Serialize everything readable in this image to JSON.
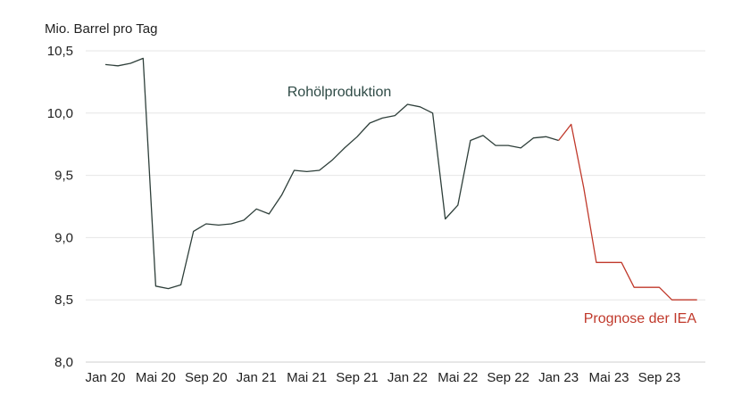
{
  "chart_data": {
    "type": "line",
    "ylabel": "Mio. Barrel pro Tag",
    "ylim": [
      8.0,
      10.5
    ],
    "yticks": [
      "8,0",
      "8,5",
      "9,0",
      "9,5",
      "10,0",
      "10,5"
    ],
    "ytick_values": [
      8.0,
      8.5,
      9.0,
      9.5,
      10.0,
      10.5
    ],
    "x_months": [
      "2020-01",
      "2020-02",
      "2020-03",
      "2020-04",
      "2020-05",
      "2020-06",
      "2020-07",
      "2020-08",
      "2020-09",
      "2020-10",
      "2020-11",
      "2020-12",
      "2021-01",
      "2021-02",
      "2021-03",
      "2021-04",
      "2021-05",
      "2021-06",
      "2021-07",
      "2021-08",
      "2021-09",
      "2021-10",
      "2021-11",
      "2021-12",
      "2022-01",
      "2022-02",
      "2022-03",
      "2022-04",
      "2022-05",
      "2022-06",
      "2022-07",
      "2022-08",
      "2022-09",
      "2022-10",
      "2022-11",
      "2022-12",
      "2023-01",
      "2023-02",
      "2023-03",
      "2023-04",
      "2023-05",
      "2023-06",
      "2023-07",
      "2023-08",
      "2023-09",
      "2023-10",
      "2023-11",
      "2023-12"
    ],
    "xticks": [
      {
        "month": "2020-01",
        "label": "Jan 20"
      },
      {
        "month": "2020-05",
        "label": "Mai 20"
      },
      {
        "month": "2020-09",
        "label": "Sep 20"
      },
      {
        "month": "2021-01",
        "label": "Jan 21"
      },
      {
        "month": "2021-05",
        "label": "Mai 21"
      },
      {
        "month": "2021-09",
        "label": "Sep 21"
      },
      {
        "month": "2022-01",
        "label": "Jan 22"
      },
      {
        "month": "2022-05",
        "label": "Mai 22"
      },
      {
        "month": "2022-09",
        "label": "Sep 22"
      },
      {
        "month": "2023-01",
        "label": "Jan 23"
      },
      {
        "month": "2023-05",
        "label": "Mai 23"
      },
      {
        "month": "2023-09",
        "label": "Sep 23"
      }
    ],
    "series": [
      {
        "name": "Rohölproduktion",
        "color": "#2e3f3a",
        "x": [
          "2020-01",
          "2020-02",
          "2020-03",
          "2020-04",
          "2020-05",
          "2020-06",
          "2020-07",
          "2020-08",
          "2020-09",
          "2020-10",
          "2020-11",
          "2020-12",
          "2021-01",
          "2021-02",
          "2021-03",
          "2021-04",
          "2021-05",
          "2021-06",
          "2021-07",
          "2021-08",
          "2021-09",
          "2021-10",
          "2021-11",
          "2021-12",
          "2022-01",
          "2022-02",
          "2022-03",
          "2022-04",
          "2022-05",
          "2022-06",
          "2022-07",
          "2022-08",
          "2022-09",
          "2022-10",
          "2022-11",
          "2022-12",
          "2023-01"
        ],
        "values": [
          10.39,
          10.38,
          10.4,
          10.44,
          8.61,
          8.59,
          8.62,
          9.05,
          9.11,
          9.1,
          9.11,
          9.14,
          9.23,
          9.19,
          9.34,
          9.54,
          9.53,
          9.54,
          9.62,
          9.72,
          9.81,
          9.92,
          9.96,
          9.98,
          10.07,
          10.05,
          10.0,
          9.15,
          9.26,
          9.78,
          9.82,
          9.74,
          9.74,
          9.72,
          9.8,
          9.81,
          9.78
        ]
      },
      {
        "name": "Prognose der IEA",
        "color": "#c0392b",
        "x": [
          "2023-01",
          "2023-02",
          "2023-03",
          "2023-04",
          "2023-05",
          "2023-06",
          "2023-07",
          "2023-08",
          "2023-09",
          "2023-10",
          "2023-11",
          "2023-12"
        ],
        "values": [
          9.78,
          9.91,
          9.4,
          8.8,
          8.8,
          8.8,
          8.6,
          8.6,
          8.6,
          8.5,
          8.5,
          8.5
        ]
      }
    ],
    "legend_placement": "inline labels",
    "grid": true
  }
}
